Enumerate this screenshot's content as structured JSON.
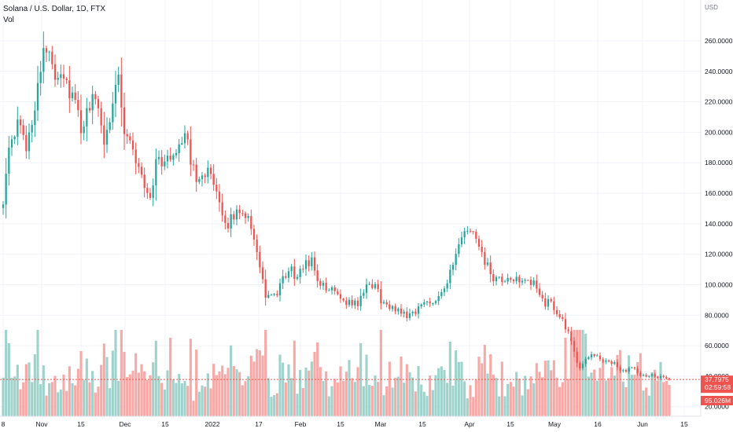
{
  "header": {
    "title": "Solana / U.S. Dollar, 1D, FTX",
    "volume_label": "Vol"
  },
  "price_axis": {
    "currency": "USD",
    "ticks": [
      "260.0000",
      "240.0000",
      "220.0000",
      "200.0000",
      "180.0000",
      "160.0000",
      "140.0000",
      "120.0000",
      "100.0000",
      "80.0000",
      "60.0000",
      "40.0000",
      "20.0000"
    ]
  },
  "time_axis": {
    "labels": [
      "8",
      "Nov",
      "15",
      "Dec",
      "15",
      "2022",
      "17",
      "Feb",
      "15",
      "Mar",
      "15",
      "Apr",
      "15",
      "May",
      "16",
      "Jun",
      "15"
    ]
  },
  "badges": {
    "last_price": "37.7975",
    "countdown": "02:59:58",
    "last_volume": "95.026M"
  },
  "colors": {
    "up": "#26a69a",
    "down": "#ef5350",
    "up_volume": "#9ed2cb",
    "down_volume": "#f7a9a7",
    "grid": "#f0f3fa",
    "text": "#131722",
    "axis_text": "#787b86"
  },
  "chart_data": {
    "type": "candlestick",
    "symbol": "Solana / U.S. Dollar",
    "interval": "1D",
    "exchange": "FTX",
    "y_unit": "USD",
    "ylim": [
      20,
      280
    ],
    "grid": true,
    "date_range": [
      "2021-10-24",
      "2022-06-12"
    ],
    "price_path": [
      [
        "2021-10-24",
        157
      ],
      [
        "2021-10-26",
        185
      ],
      [
        "2021-10-29",
        205
      ],
      [
        "2021-11-01",
        192
      ],
      [
        "2021-11-03",
        208
      ],
      [
        "2021-11-06",
        245
      ],
      [
        "2021-11-08",
        252
      ],
      [
        "2021-11-09",
        258
      ],
      [
        "2021-11-11",
        238
      ],
      [
        "2021-11-13",
        242
      ],
      [
        "2021-11-15",
        232
      ],
      [
        "2021-11-18",
        218
      ],
      [
        "2021-11-20",
        200
      ],
      [
        "2021-11-22",
        210
      ],
      [
        "2021-11-24",
        228
      ],
      [
        "2021-11-26",
        210
      ],
      [
        "2021-11-28",
        195
      ],
      [
        "2021-12-01",
        220
      ],
      [
        "2021-12-03",
        240
      ],
      [
        "2021-12-05",
        200
      ],
      [
        "2021-12-08",
        190
      ],
      [
        "2021-12-10",
        175
      ],
      [
        "2021-12-12",
        165
      ],
      [
        "2021-12-14",
        158
      ],
      [
        "2021-12-16",
        180
      ],
      [
        "2021-12-18",
        182
      ],
      [
        "2021-12-20",
        180
      ],
      [
        "2021-12-23",
        190
      ],
      [
        "2021-12-26",
        200
      ],
      [
        "2021-12-28",
        180
      ],
      [
        "2021-12-30",
        172
      ],
      [
        "2022-01-02",
        175
      ],
      [
        "2022-01-04",
        170
      ],
      [
        "2022-01-07",
        150
      ],
      [
        "2022-01-09",
        140
      ],
      [
        "2022-01-11",
        142
      ],
      [
        "2022-01-14",
        150
      ],
      [
        "2022-01-17",
        145
      ],
      [
        "2022-01-19",
        132
      ],
      [
        "2022-01-21",
        110
      ],
      [
        "2022-01-23",
        92
      ],
      [
        "2022-01-25",
        94
      ],
      [
        "2022-01-27",
        92
      ],
      [
        "2022-01-29",
        104
      ],
      [
        "2022-02-01",
        110
      ],
      [
        "2022-02-03",
        103
      ],
      [
        "2022-02-06",
        116
      ],
      [
        "2022-02-08",
        115
      ],
      [
        "2022-02-10",
        104
      ],
      [
        "2022-02-13",
        96
      ],
      [
        "2022-02-16",
        98
      ],
      [
        "2022-02-18",
        92
      ],
      [
        "2022-02-21",
        88
      ],
      [
        "2022-02-24",
        88
      ],
      [
        "2022-02-26",
        95
      ],
      [
        "2022-02-28",
        100
      ],
      [
        "2022-03-02",
        100
      ],
      [
        "2022-03-04",
        90
      ],
      [
        "2022-03-07",
        84
      ],
      [
        "2022-03-10",
        84
      ],
      [
        "2022-03-13",
        80
      ],
      [
        "2022-03-16",
        83
      ],
      [
        "2022-03-19",
        88
      ],
      [
        "2022-03-22",
        90
      ],
      [
        "2022-03-24",
        93
      ],
      [
        "2022-03-27",
        102
      ],
      [
        "2022-03-30",
        118
      ],
      [
        "2022-04-01",
        130
      ],
      [
        "2022-04-03",
        137
      ],
      [
        "2022-04-05",
        134
      ],
      [
        "2022-04-07",
        122
      ],
      [
        "2022-04-10",
        112
      ],
      [
        "2022-04-12",
        102
      ],
      [
        "2022-04-15",
        103
      ],
      [
        "2022-04-18",
        101
      ],
      [
        "2022-04-20",
        106
      ],
      [
        "2022-04-23",
        101
      ],
      [
        "2022-04-26",
        100
      ],
      [
        "2022-04-28",
        94
      ],
      [
        "2022-04-30",
        88
      ],
      [
        "2022-05-02",
        88
      ],
      [
        "2022-05-04",
        82
      ],
      [
        "2022-05-06",
        77
      ],
      [
        "2022-05-08",
        68
      ],
      [
        "2022-05-10",
        55
      ],
      [
        "2022-05-12",
        44
      ],
      [
        "2022-05-14",
        52
      ],
      [
        "2022-05-16",
        55
      ],
      [
        "2022-05-18",
        52
      ],
      [
        "2022-05-21",
        50
      ],
      [
        "2022-05-24",
        48
      ],
      [
        "2022-05-27",
        43
      ],
      [
        "2022-05-30",
        46
      ],
      [
        "2022-06-01",
        42
      ],
      [
        "2022-06-03",
        40
      ],
      [
        "2022-06-05",
        41
      ],
      [
        "2022-06-08",
        39
      ],
      [
        "2022-06-10",
        39
      ],
      [
        "2022-06-12",
        37.8
      ]
    ],
    "last_price": 37.7975,
    "last_volume": "95.026M"
  }
}
